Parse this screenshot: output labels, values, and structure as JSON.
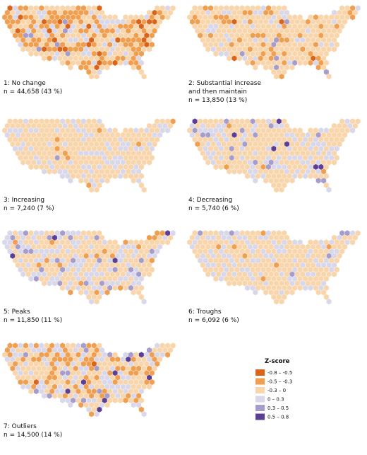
{
  "panels": [
    {
      "label": [
        "1: No change"
      ],
      "count": "n = 44,658 (43 %)"
    },
    {
      "label": [
        "2: Substantial increase",
        "and then maintain"
      ],
      "count": "n = 13,850 (13 %)"
    },
    {
      "label": [
        "3: Increasing"
      ],
      "count": "n = 7,240 (7 %)"
    },
    {
      "label": [
        "4: Decreasing"
      ],
      "count": "n = 5,740 (6 %)"
    },
    {
      "label": [
        "5: Peaks"
      ],
      "count": "n = 11,850 (11 %)"
    },
    {
      "label": [
        "6: Troughs"
      ],
      "count": "n = 6,092 (6 %)"
    },
    {
      "label": [
        "7: Outliers"
      ],
      "count": "n = 14,500 (14 %)"
    }
  ],
  "legend": {
    "title": "Z-score",
    "items": [
      {
        "label": "-0.8 – -0.5",
        "color": "#d9641a"
      },
      {
        "label": "-0.5 – -0.3",
        "color": "#ef9f4f"
      },
      {
        "label": "-0.3 – 0",
        "color": "#f8d5aa"
      },
      {
        "label": "0 – 0.3",
        "color": "#d9d7ea"
      },
      {
        "label": "0.3 – 0.5",
        "color": "#a69dcb"
      },
      {
        "label": "0.5 – 0.8",
        "color": "#5c3f95"
      }
    ]
  }
}
